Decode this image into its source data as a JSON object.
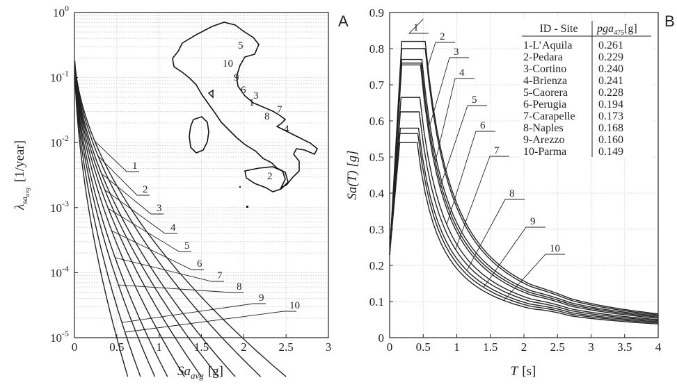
{
  "panel_a": {
    "letter": "A",
    "ylabel_base": "λ",
    "ylabel_sub": "sa",
    "ylabel_subsub": "avg",
    "ylabel_unit": "[1/year]",
    "xlabel_base": "Sa",
    "xlabel_sub": "avg",
    "xlabel_unit": "[g]"
  },
  "panel_b": {
    "letter": "B",
    "ylabel": "Sa(T) [g]",
    "xlabel_base": "T",
    "xlabel_unit": "[s]",
    "table_header_site": "ID - Site",
    "table_header_pga_base": "pga",
    "table_header_pga_sub": "475",
    "table_header_pga_unit": "[g]"
  },
  "chart_data": [
    {
      "type": "line",
      "scale": "log-y",
      "xlim": [
        0,
        3
      ],
      "ylim": [
        1e-05,
        1
      ],
      "x_ticks": [
        "0",
        "0.5",
        "1",
        "1.5",
        "2",
        "2.5",
        "3"
      ],
      "y_ticks": [
        "10^0",
        "10^-1",
        "10^-2",
        "10^-3",
        "10^-4",
        "10^-5"
      ],
      "grid": true,
      "series": [
        {
          "name": "1",
          "x_at_1e-5": 2.5
        },
        {
          "name": "2",
          "x_at_1e-5": 2.2
        },
        {
          "name": "3",
          "x_at_1e-5": 1.9
        },
        {
          "name": "4",
          "x_at_1e-5": 1.7
        },
        {
          "name": "5",
          "x_at_1e-5": 1.5
        },
        {
          "name": "6",
          "x_at_1e-5": 1.3
        },
        {
          "name": "7",
          "x_at_1e-5": 1.1
        },
        {
          "name": "8",
          "x_at_1e-5": 0.95
        },
        {
          "name": "9",
          "x_at_1e-5": 0.78
        },
        {
          "name": "10",
          "x_at_1e-5": 0.63
        }
      ],
      "inset": "map of Italy with site numbers 1-10",
      "map_labels": [
        "5",
        "10",
        "9",
        "6",
        "3",
        "1",
        "8",
        "7",
        "4",
        "2"
      ]
    },
    {
      "type": "line",
      "xlim": [
        0,
        4
      ],
      "ylim": [
        0,
        0.9
      ],
      "x_ticks": [
        "0",
        "0.5",
        "1",
        "1.5",
        "2",
        "2.5",
        "3",
        "3.5",
        "4"
      ],
      "y_ticks": [
        "0",
        "0.1",
        "0.2",
        "0.3",
        "0.4",
        "0.5",
        "0.6",
        "0.7",
        "0.8",
        "0.9"
      ],
      "grid": true,
      "series": [
        {
          "name": "1",
          "plateau": 0.82,
          "plateau_T": [
            0.18,
            0.53
          ],
          "Sa_at_4s": 0.066
        },
        {
          "name": "2",
          "plateau": 0.8,
          "plateau_T": [
            0.18,
            0.53
          ],
          "Sa_at_4s": 0.063
        },
        {
          "name": "3",
          "plateau": 0.77,
          "plateau_T": [
            0.18,
            0.48
          ],
          "Sa_at_4s": 0.06
        },
        {
          "name": "4",
          "plateau": 0.76,
          "plateau_T": [
            0.18,
            0.47
          ],
          "Sa_at_4s": 0.057
        },
        {
          "name": "5",
          "plateau": 0.755,
          "plateau_T": [
            0.18,
            0.46
          ],
          "Sa_at_4s": 0.054
        },
        {
          "name": "6",
          "plateau": 0.665,
          "plateau_T": [
            0.17,
            0.45
          ],
          "Sa_at_4s": 0.05
        },
        {
          "name": "7",
          "plateau": 0.625,
          "plateau_T": [
            0.16,
            0.44
          ],
          "Sa_at_4s": 0.047
        },
        {
          "name": "8",
          "plateau": 0.58,
          "plateau_T": [
            0.16,
            0.43
          ],
          "Sa_at_4s": 0.044
        },
        {
          "name": "9",
          "plateau": 0.565,
          "plateau_T": [
            0.15,
            0.42
          ],
          "Sa_at_4s": 0.041
        },
        {
          "name": "10",
          "plateau": 0.54,
          "plateau_T": [
            0.15,
            0.41
          ],
          "Sa_at_4s": 0.038
        }
      ],
      "table": [
        {
          "site": "1-L’Aquila",
          "pga": "0.261"
        },
        {
          "site": "2-Pedara",
          "pga": "0.229"
        },
        {
          "site": "3-Cortino",
          "pga": "0.240"
        },
        {
          "site": "4-Brienza",
          "pga": "0.241"
        },
        {
          "site": "5-Caorera",
          "pga": "0.228"
        },
        {
          "site": "6-Perugia",
          "pga": "0.194"
        },
        {
          "site": "7-Carapelle",
          "pga": "0.173"
        },
        {
          "site": "8-Naples",
          "pga": "0.168"
        },
        {
          "site": "9-Arezzo",
          "pga": "0.160"
        },
        {
          "site": "10-Parma",
          "pga": "0.149"
        }
      ]
    }
  ]
}
